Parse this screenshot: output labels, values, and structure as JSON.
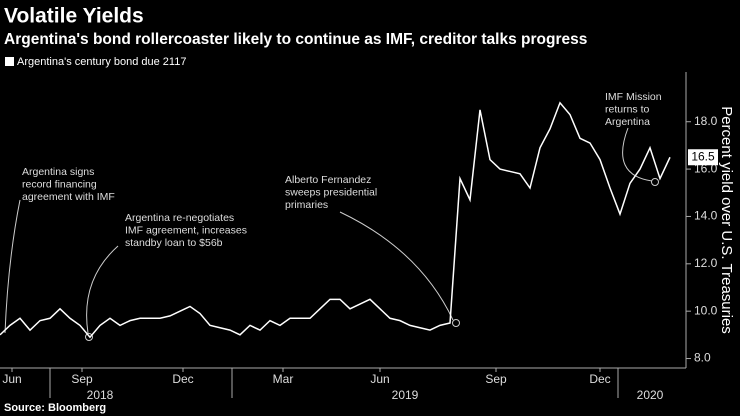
{
  "chart_data": {
    "type": "line",
    "title": "Volatile Yields",
    "subtitle": "Argentina's bond rollercoaster likely to continue as IMF, creditor talks progress",
    "y_axis_label": "Percent yield over U.S. Treasuries",
    "source": "Source: Bloomberg",
    "series": [
      {
        "name": "Argentina's century bond due 2117",
        "color": "#ffffff",
        "values": [
          9.0,
          9.4,
          9.7,
          9.2,
          9.6,
          9.7,
          10.1,
          9.7,
          9.4,
          8.9,
          9.4,
          9.7,
          9.4,
          9.6,
          9.7,
          9.7,
          9.7,
          9.8,
          10.0,
          10.2,
          9.9,
          9.4,
          9.3,
          9.2,
          9.0,
          9.4,
          9.2,
          9.6,
          9.4,
          9.7,
          9.7,
          9.7,
          10.1,
          10.5,
          10.5,
          10.1,
          10.3,
          10.5,
          10.1,
          9.7,
          9.6,
          9.4,
          9.3,
          9.2,
          9.4,
          9.5,
          15.6,
          14.7,
          18.5,
          16.4,
          16.0,
          15.9,
          15.8,
          15.2,
          16.9,
          17.7,
          18.8,
          18.3,
          17.3,
          17.1,
          16.4,
          15.2,
          14.1,
          15.4,
          16.0,
          16.9,
          15.6,
          16.5
        ]
      }
    ],
    "xlim": [
      0,
      67
    ],
    "xticks": [
      {
        "value": 1.2,
        "label": "Jun"
      },
      {
        "value": 8.2,
        "label": "Sep"
      },
      {
        "value": 18.3,
        "label": "Dec"
      },
      {
        "value": 28.3,
        "label": "Mar"
      },
      {
        "value": 38,
        "label": "Jun"
      },
      {
        "value": 49.6,
        "label": "Sep"
      },
      {
        "value": 60,
        "label": "Dec"
      }
    ],
    "xticks2": [
      {
        "value": 10,
        "label": "2018"
      },
      {
        "value": 40.5,
        "label": "2019"
      },
      {
        "value": 65,
        "label": "2020"
      }
    ],
    "ylim": [
      7.6,
      20.1
    ],
    "yticks": [
      {
        "value": 8,
        "label": "8.0"
      },
      {
        "value": 10,
        "label": "10.0"
      },
      {
        "value": 12,
        "label": "12.0"
      },
      {
        "value": 14,
        "label": "14.0"
      },
      {
        "value": 16,
        "label": "16.0"
      },
      {
        "value": 18,
        "label": "18.0"
      }
    ],
    "annotations": [
      {
        "lines": [
          "Argentina signs",
          "record financing",
          "agreement with IMF"
        ]
      },
      {
        "lines": [
          "Argentina re-negotiates",
          "IMF agreement, increases",
          "standby loan to $56b"
        ]
      },
      {
        "lines": [
          "Alberto Fernandez",
          "sweeps presidential",
          "primaries"
        ]
      },
      {
        "lines": [
          "IMF Mission",
          "returns to",
          "Argentina"
        ]
      }
    ]
  }
}
